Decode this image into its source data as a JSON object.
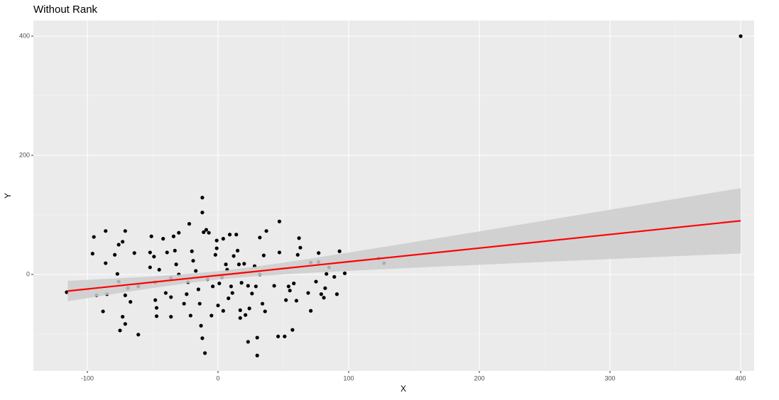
{
  "chart_data": {
    "type": "scatter",
    "title": "Without Rank",
    "xlabel": "X",
    "ylabel": "Y",
    "x": [
      -115.8,
      -95,
      -86,
      -96,
      -93,
      -88,
      -86,
      -85,
      -79,
      -76,
      -73,
      -71,
      -77,
      -76,
      -75,
      -73,
      -71,
      -71,
      -69,
      -67,
      -64,
      -61,
      -61,
      -52,
      -51,
      -49,
      -52,
      -48,
      -48,
      -47,
      -47,
      -45,
      -42,
      -40,
      -39,
      -36,
      -36,
      -36,
      -34,
      -33,
      -32,
      -30,
      -30,
      -26,
      -24,
      -23,
      -22,
      -21,
      -20,
      -19,
      -17,
      -15,
      -14,
      -13,
      -12,
      -12,
      -12,
      -11,
      -10,
      -9,
      -8,
      -7,
      -5,
      -4,
      -2,
      -1,
      -1,
      0,
      1,
      3,
      4,
      4,
      6,
      7,
      8,
      9,
      10,
      11,
      12,
      14,
      15,
      16,
      17,
      17,
      18,
      20,
      21,
      23,
      23,
      24,
      26,
      28,
      29,
      30,
      30,
      32,
      32,
      34,
      36,
      35,
      37,
      43,
      46,
      47,
      47,
      51,
      52,
      54,
      55,
      57,
      58,
      60,
      61,
      62,
      63,
      69,
      71,
      71,
      75,
      77,
      77,
      79,
      81,
      82,
      83,
      85,
      89,
      91,
      93,
      97,
      123,
      127,
      400
    ],
    "values": [
      -29.8,
      63,
      73,
      35,
      -35,
      -62,
      19,
      -33,
      33,
      50,
      55,
      73,
      1,
      -12,
      -94,
      -71,
      -83,
      -35,
      -23,
      -46,
      36,
      -101,
      -20,
      37,
      64,
      30,
      12,
      -13,
      -43,
      -70,
      -56,
      8,
      60,
      -31,
      37,
      -38,
      -71,
      -6,
      64,
      40,
      17,
      70,
      0,
      -49,
      -33,
      -13,
      85,
      -69,
      39,
      23,
      6,
      -25,
      -49,
      -86,
      104,
      129,
      -107,
      71,
      -132,
      75,
      -8,
      70,
      -69,
      -20,
      33,
      57,
      44,
      -52,
      -15,
      -5,
      -61,
      60,
      17,
      8,
      -40,
      67,
      -20,
      -31,
      31,
      67,
      40,
      17,
      -60,
      -73,
      -14,
      18,
      -68,
      -19,
      -113,
      -57,
      -32,
      14,
      -20,
      -136,
      -106,
      62,
      0,
      -49,
      -62,
      32,
      73,
      -19,
      -104,
      89,
      37,
      -104,
      -43,
      -20,
      -27,
      -93,
      -15,
      -44,
      33,
      61,
      45,
      -31,
      -61,
      20,
      -12,
      21,
      36,
      -33,
      -39,
      -23,
      1,
      12,
      -4,
      -33,
      39,
      2,
      27,
      19,
      400
    ],
    "color": "#000000",
    "xlim": [
      -141.3,
      410.3
    ],
    "ylim": [
      -161.9,
      426.2
    ],
    "xticks": [
      -100,
      0,
      100,
      200,
      300,
      400
    ],
    "yticks": [
      0,
      200,
      400
    ],
    "grid": true,
    "fit": {
      "color": "#ff0000",
      "band_color": "#cccccc",
      "x": [
        -115,
        -75,
        -50,
        -25,
        0,
        25,
        50,
        75,
        100,
        150,
        200,
        250,
        300,
        350,
        400
      ],
      "values": [
        -27.8,
        -18.7,
        -12.95,
        -7.2,
        -1.5,
        4.2,
        9.95,
        15.7,
        21.4,
        32.85,
        44.3,
        55.75,
        67.2,
        78.65,
        90.1
      ],
      "lower": [
        -44.9,
        -31.1,
        -22.8,
        -15.0,
        -8.5,
        -3.6,
        0.2,
        3.3,
        6.1,
        11.3,
        16.2,
        21.1,
        25.8,
        30.6,
        35.2
      ],
      "upper": [
        -10.7,
        -6.3,
        -3.2,
        0.6,
        5.5,
        12.0,
        19.8,
        28.1,
        36.7,
        54.5,
        72.4,
        90.5,
        108.6,
        126.8,
        145.0
      ]
    }
  }
}
